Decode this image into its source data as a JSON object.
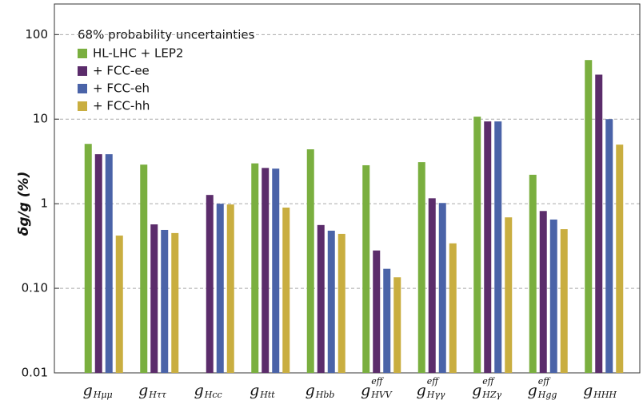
{
  "chart_data": {
    "type": "bar",
    "y_label": "δg/g (%)",
    "legend_title": "68% probability uncertainties",
    "categories": [
      {
        "main": "g",
        "sub": "Hμμ"
      },
      {
        "main": "g",
        "sub": "Hττ"
      },
      {
        "main": "g",
        "sub": "Hcc"
      },
      {
        "main": "g",
        "sub": "Htt"
      },
      {
        "main": "g",
        "sub": "Hbb"
      },
      {
        "main": "g",
        "sub": "HVV",
        "sup": "eff"
      },
      {
        "main": "g",
        "sub": "Hγγ",
        "sup": "eff"
      },
      {
        "main": "g",
        "sub": "HZγ",
        "sup": "eff"
      },
      {
        "main": "g",
        "sub": "Hgg",
        "sup": "eff"
      },
      {
        "main": "g",
        "sub": "HHH"
      }
    ],
    "series": [
      {
        "name": "HL-LHC + LEP2",
        "color": "#7aaf3f",
        "values": [
          5.1,
          2.9,
          null,
          3.0,
          4.4,
          2.85,
          3.1,
          10.7,
          2.2,
          50
        ]
      },
      {
        "name": "+ FCC-ee",
        "color": "#5b2c6b",
        "values": [
          3.85,
          0.57,
          1.27,
          2.65,
          0.56,
          0.28,
          1.16,
          9.4,
          0.82,
          33.6
        ]
      },
      {
        "name": "+ FCC-eh",
        "color": "#4a63a8",
        "values": [
          3.85,
          0.49,
          1.0,
          2.6,
          0.48,
          0.17,
          1.02,
          9.4,
          0.65,
          10
        ]
      },
      {
        "name": "+ FCC-hh",
        "color": "#c9ae40",
        "values": [
          0.42,
          0.45,
          0.98,
          0.9,
          0.44,
          0.135,
          0.34,
          0.69,
          0.5,
          5
        ]
      }
    ],
    "log_y": true,
    "ylim": [
      0.01,
      230
    ],
    "yticks": [
      0.01,
      {
        "value": 0.1,
        "label": "0.10"
      },
      1,
      10,
      100
    ],
    "grid": true,
    "legend_position": "upper left"
  }
}
